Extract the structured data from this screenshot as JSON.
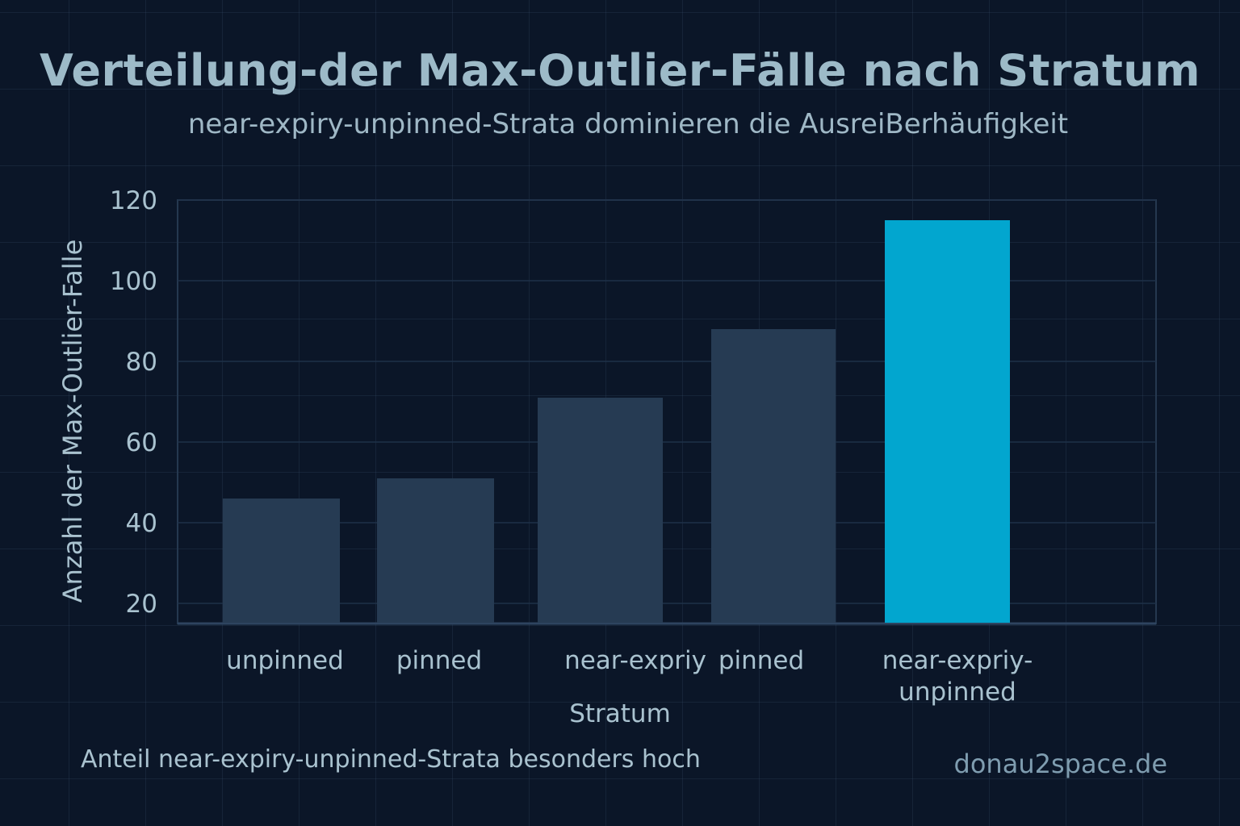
{
  "chart_data": {
    "type": "bar",
    "title": "Verteilung-der Max-Outlier-Fälle nach Stratum",
    "subtitle": "near-expiry-unpinned-Strata dominieren die AusreiBerhäufigkeit",
    "xlabel": "Stratum",
    "ylabel": "Anzahl der Max-Outlier-Falle",
    "categories": [
      "unpinned",
      "pinned",
      "near-expriy",
      "pinned",
      "near-expriy-\nunpinned"
    ],
    "values": [
      46,
      51,
      71,
      88,
      115
    ],
    "yticks": [
      20,
      40,
      60,
      80,
      100,
      120
    ],
    "ylim": [
      15,
      120
    ],
    "grid": true,
    "colors": {
      "default": "#263b53",
      "highlight": "#02a6cf"
    },
    "highlight_index": 4
  },
  "footer": {
    "note": "Anteil near-expiry-unpinned-Strata besonders hoch",
    "brand": "donau2space.de"
  }
}
